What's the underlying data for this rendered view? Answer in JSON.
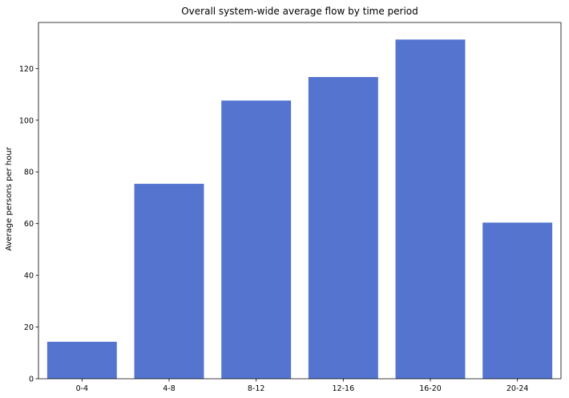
{
  "chart_data": {
    "type": "bar",
    "title": "Overall system-wide average flow by time period",
    "xlabel": "",
    "ylabel": "Average persons per hour",
    "categories": [
      "0-4",
      "4-8",
      "8-12",
      "12-16",
      "16-20",
      "20-24"
    ],
    "values": [
      14.3,
      75.4,
      107.6,
      116.7,
      131.2,
      60.4
    ],
    "ylim": [
      0,
      137.8
    ],
    "yticks": [
      0,
      20,
      40,
      60,
      80,
      100,
      120
    ],
    "bar_color": "#5474d0",
    "grid": false,
    "legend": "none"
  }
}
